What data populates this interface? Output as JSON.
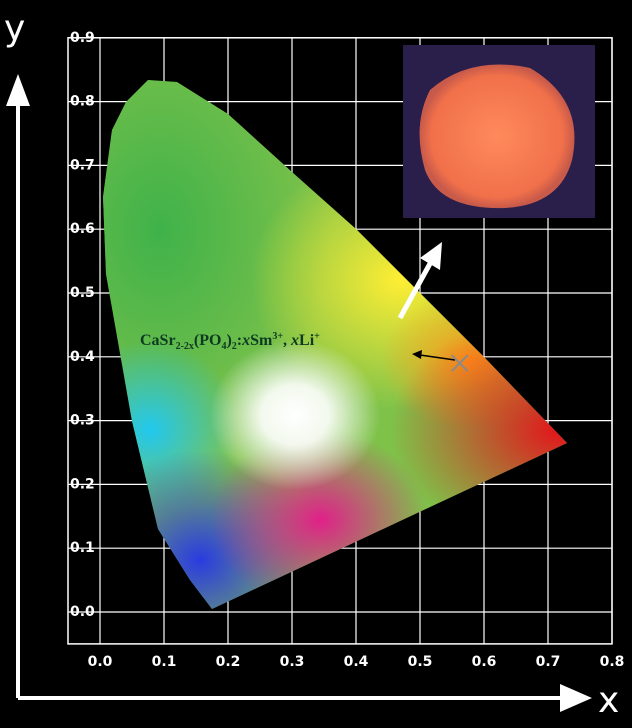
{
  "chart_data": {
    "type": "scatter",
    "x_label": "x",
    "y_label": "y",
    "annotation": [
      "CaSr",
      "2-2x",
      "(PO",
      "4",
      ")",
      "2",
      ":",
      "x",
      "Sm",
      "3+",
      ", ",
      "x",
      "Li",
      "+"
    ],
    "x": [
      0.562
    ],
    "values": [
      0.39
    ],
    "color": "#8a8a8a",
    "xlim": [
      -0.05,
      0.8
    ],
    "ylim": [
      -0.05,
      0.9
    ],
    "xticks": [
      {
        "value": 0,
        "label": "0.0"
      },
      {
        "value": 0.1,
        "label": "0.1"
      },
      {
        "value": 0.2,
        "label": "0.2"
      },
      {
        "value": 0.3,
        "label": "0.3"
      },
      {
        "value": 0.4,
        "label": "0.4"
      },
      {
        "value": 0.5,
        "label": "0.5"
      },
      {
        "value": 0.6,
        "label": "0.6"
      },
      {
        "value": 0.7,
        "label": "0.7"
      },
      {
        "value": 0.8,
        "label": "0.8"
      }
    ],
    "yticks": [
      {
        "value": 0,
        "label": "0.0"
      },
      {
        "value": 0.1,
        "label": "0.1"
      },
      {
        "value": 0.2,
        "label": "0.2"
      },
      {
        "value": 0.3,
        "label": "0.3"
      },
      {
        "value": 0.4,
        "label": "0.4"
      },
      {
        "value": 0.5,
        "label": "0.5"
      },
      {
        "value": 0.6,
        "label": "0.6"
      },
      {
        "value": 0.7,
        "label": "0.7"
      },
      {
        "value": 0.8,
        "label": "0.8"
      },
      {
        "value": 0.9,
        "label": "0.9"
      }
    ],
    "grid": true
  }
}
